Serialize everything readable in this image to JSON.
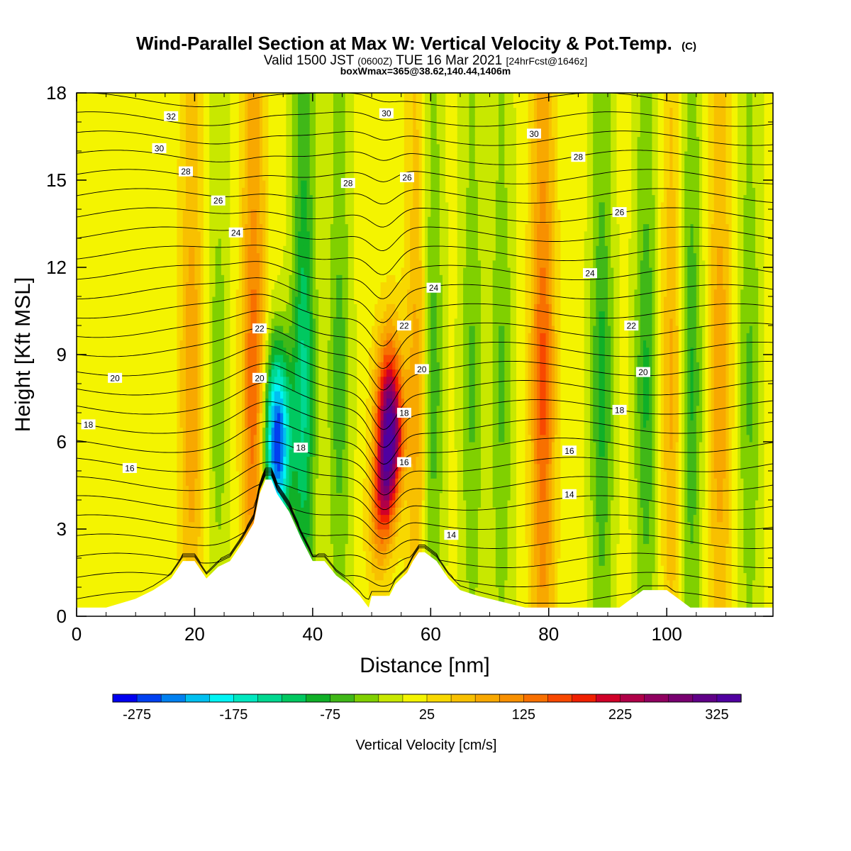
{
  "title": "Wind-Parallel Section at Max W: Vertical Velocity & Pot.Temp.",
  "title_mark": "(C)",
  "subtitle_main_a": "Valid 1500 JST",
  "subtitle_small_a": "(0600Z)",
  "subtitle_main_b": "TUE 16 Mar 2021",
  "subtitle_small_b": "[24hrFcst@1646z]",
  "subtitle2": "boxWmax=365@38.62,140.44,1406m",
  "chart_data": {
    "type": "heatmap",
    "xlabel": "Distance [nm]",
    "ylabel": "Height [Kft MSL]",
    "xlim": [
      0,
      118
    ],
    "ylim": [
      0,
      18
    ],
    "xticks": [
      "0",
      "20",
      "40",
      "60",
      "80",
      "100"
    ],
    "yticks": [
      "0",
      "3",
      "6",
      "9",
      "12",
      "15",
      "18"
    ],
    "colorbar": {
      "label": "Vertical Velocity [cm/s]",
      "range": [
        -300,
        350
      ],
      "step": 25,
      "ticks": [
        "-275",
        "-175",
        "-75",
        "25",
        "125",
        "225",
        "325"
      ],
      "colors": [
        "#0000f0",
        "#0040f0",
        "#0080f0",
        "#00c0f0",
        "#00f4f4",
        "#00e8c0",
        "#00d890",
        "#00c860",
        "#10b028",
        "#40b818",
        "#80d000",
        "#c8e800",
        "#f4f400",
        "#f8d800",
        "#f8c000",
        "#f8a800",
        "#f89000",
        "#f87000",
        "#f84800",
        "#f02000",
        "#d00028",
        "#b00048",
        "#900060",
        "#780070",
        "#600088",
        "#5000a0"
      ]
    },
    "vertical_velocity_columns": [
      {
        "x": 19.5,
        "w_max": 100
      },
      {
        "x": 24.0,
        "w_max": -40
      },
      {
        "x": 30.0,
        "w_max": 150
      },
      {
        "x": 34.0,
        "w_max": -275
      },
      {
        "x": 38.5,
        "w_max": -130
      },
      {
        "x": 44.5,
        "w_max": -65
      },
      {
        "x": 53.0,
        "w_max": 365
      },
      {
        "x": 58.0,
        "w_max": 110
      },
      {
        "x": 60.0,
        "w_max": -90
      },
      {
        "x": 67.0,
        "w_max": -55
      },
      {
        "x": 72.0,
        "w_max": -55
      },
      {
        "x": 79.0,
        "w_max": 160
      },
      {
        "x": 89.0,
        "w_max": -85
      },
      {
        "x": 96.5,
        "w_max": -80
      },
      {
        "x": 101.0,
        "w_max": 90
      },
      {
        "x": 104.0,
        "w_max": -85
      },
      {
        "x": 109.0,
        "w_max": 100
      },
      {
        "x": 114.0,
        "w_max": -55
      }
    ],
    "terrain": {
      "x": [
        0,
        5,
        10,
        13,
        16,
        18,
        20,
        22,
        24,
        26,
        28,
        30,
        31,
        32,
        33,
        34,
        35,
        36,
        38,
        40,
        42,
        44,
        46,
        48,
        49.5,
        50,
        51,
        53,
        54,
        56,
        57,
        58,
        59,
        61,
        63,
        65,
        68,
        72,
        76,
        80,
        84,
        88,
        92,
        94,
        96,
        100,
        102,
        104,
        108,
        112,
        118
      ],
      "y": [
        0.3,
        0.3,
        0.6,
        0.9,
        1.3,
        1.9,
        1.9,
        1.3,
        1.7,
        1.9,
        2.5,
        3.2,
        4.2,
        4.7,
        4.7,
        4.2,
        3.9,
        3.6,
        2.7,
        1.9,
        1.9,
        1.4,
        1.1,
        0.7,
        0.3,
        0.7,
        0.7,
        0.7,
        1.1,
        1.5,
        1.9,
        2.2,
        2.2,
        1.9,
        1.3,
        0.9,
        0.7,
        0.5,
        0.3,
        0.3,
        0.3,
        0.3,
        0.3,
        0.6,
        0.9,
        0.9,
        0.6,
        0.3,
        0.3,
        0.3,
        0.3
      ]
    },
    "theta_contour_labels": [
      {
        "text": "32",
        "x": 16.0,
        "y": 17.2
      },
      {
        "text": "30",
        "x": 14.0,
        "y": 16.1
      },
      {
        "text": "28",
        "x": 18.5,
        "y": 15.3
      },
      {
        "text": "26",
        "x": 24.0,
        "y": 14.3
      },
      {
        "text": "24",
        "x": 27.0,
        "y": 13.2
      },
      {
        "text": "22",
        "x": 31.0,
        "y": 9.9
      },
      {
        "text": "20",
        "x": 31.0,
        "y": 8.2
      },
      {
        "text": "20",
        "x": 6.5,
        "y": 8.2
      },
      {
        "text": "18",
        "x": 2.0,
        "y": 6.6
      },
      {
        "text": "16",
        "x": 9.0,
        "y": 5.1
      },
      {
        "text": "18",
        "x": 38.0,
        "y": 5.8
      },
      {
        "text": "30",
        "x": 52.5,
        "y": 17.3
      },
      {
        "text": "28",
        "x": 46.0,
        "y": 14.9
      },
      {
        "text": "26",
        "x": 56.0,
        "y": 15.1
      },
      {
        "text": "24",
        "x": 60.5,
        "y": 11.3
      },
      {
        "text": "22",
        "x": 55.5,
        "y": 10.0
      },
      {
        "text": "20",
        "x": 58.5,
        "y": 8.5
      },
      {
        "text": "18",
        "x": 55.5,
        "y": 7.0
      },
      {
        "text": "16",
        "x": 55.5,
        "y": 5.3
      },
      {
        "text": "14",
        "x": 63.5,
        "y": 2.8
      },
      {
        "text": "30",
        "x": 77.5,
        "y": 16.6
      },
      {
        "text": "28",
        "x": 85.0,
        "y": 15.8
      },
      {
        "text": "26",
        "x": 92.0,
        "y": 13.9
      },
      {
        "text": "24",
        "x": 87.0,
        "y": 11.8
      },
      {
        "text": "22",
        "x": 94.0,
        "y": 10.0
      },
      {
        "text": "20",
        "x": 96.0,
        "y": 8.4
      },
      {
        "text": "18",
        "x": 92.0,
        "y": 7.1
      },
      {
        "text": "16",
        "x": 83.5,
        "y": 5.7
      },
      {
        "text": "14",
        "x": 83.5,
        "y": 4.2
      }
    ]
  }
}
